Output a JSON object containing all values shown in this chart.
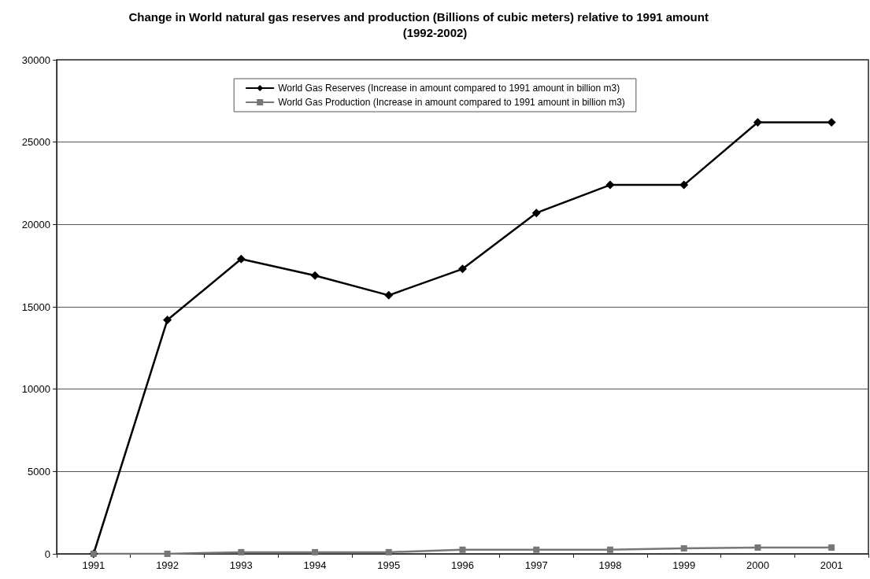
{
  "chart_data": {
    "type": "line",
    "title": "Change in World natural gas reserves and production (Billions of cubic meters) relative to 1991 amount          (1992-2002)",
    "categories": [
      "1991",
      "1992",
      "1993",
      "1994",
      "1995",
      "1996",
      "1997",
      "1998",
      "1999",
      "2000",
      "2001"
    ],
    "series": [
      {
        "name": "World Gas Reserves (Increase in amount compared to 1991 amount in billion m3)",
        "color": "#000000",
        "marker": "diamond",
        "values": [
          0,
          14200,
          17900,
          16900,
          15700,
          17300,
          20700,
          22400,
          22400,
          26200,
          26200
        ]
      },
      {
        "name": "World Gas Production (Increase in amount compared to 1991 amount in billion m3)",
        "color": "#777777",
        "marker": "square",
        "values": [
          0,
          0,
          100,
          100,
          100,
          250,
          250,
          250,
          330,
          380,
          380
        ]
      }
    ],
    "ylim": [
      0,
      30000
    ],
    "yticks": [
      0,
      5000,
      10000,
      15000,
      20000,
      25000,
      30000
    ],
    "grid": "y",
    "legend": "top",
    "line_style": "solid"
  }
}
